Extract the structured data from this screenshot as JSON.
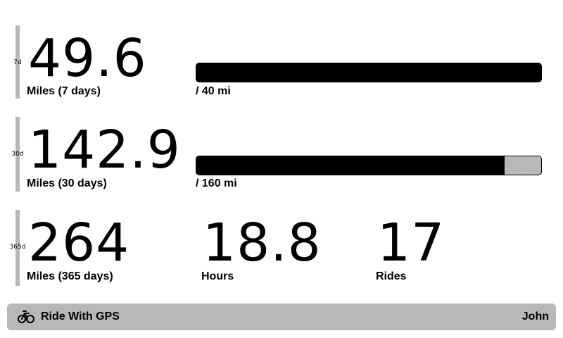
{
  "stats": [
    {
      "period": "7d",
      "miles": "49.6",
      "label": "Miles (7 days)",
      "goal_label": "/ 40 mi",
      "progress": 1.0
    },
    {
      "period": "30d",
      "miles": "142.9",
      "label": "Miles (30 days)",
      "goal_label": "/ 160 mi",
      "progress": 0.893
    },
    {
      "period": "365d",
      "miles": "264",
      "label": "Miles (365 days)",
      "hours": "18.8",
      "hours_label": "Hours",
      "rides": "17",
      "rides_label": "Rides"
    }
  ],
  "footer": {
    "icon": "bicycle-icon",
    "app_name": "Ride With GPS",
    "user": "John"
  }
}
